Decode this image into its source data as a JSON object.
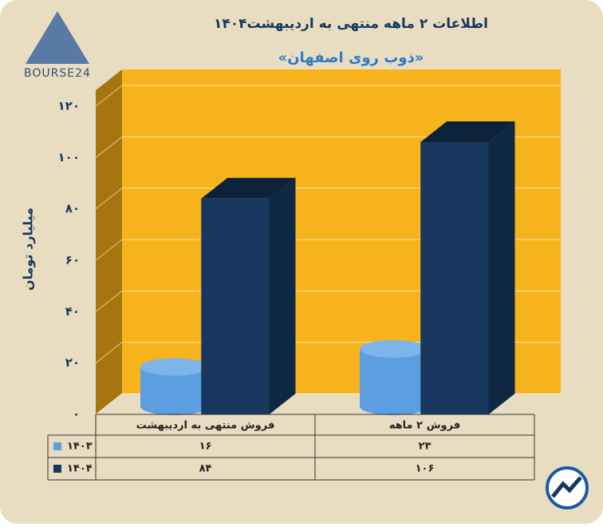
{
  "logo": "BOURSE24",
  "chart_data": {
    "type": "bar3d",
    "title": "اطلاعات ۲ ماهه منتهی به اردیبهشت۱۴۰۴",
    "subtitle": "«ذوب روی اصفهان»",
    "y_label": "میلیارد تومان",
    "categories": [
      "فروش منتهی به  اردیبهشت",
      "فروش ۲  ماهه"
    ],
    "series": [
      {
        "name": "۱۴۰۳",
        "color": "#5b9fe0",
        "shape": "cylinder",
        "values": [
          16,
          23
        ],
        "value_labels": [
          "۱۶",
          "۲۳"
        ]
      },
      {
        "name": "۱۴۰۴",
        "color": "#17375e",
        "shape": "box",
        "values": [
          84,
          106
        ],
        "value_labels": [
          "۸۴",
          "۱۰۶"
        ]
      }
    ],
    "ylim": [
      0,
      120
    ],
    "yticks": [
      {
        "value": 0,
        "label": "۰"
      },
      {
        "value": 20,
        "label": "۲۰"
      },
      {
        "value": 40,
        "label": "۴۰"
      },
      {
        "value": 60,
        "label": "۶۰"
      },
      {
        "value": 80,
        "label": "۸۰"
      },
      {
        "value": 100,
        "label": "۱۰۰"
      },
      {
        "value": 120,
        "label": "۱۲۰"
      }
    ],
    "grid": true
  }
}
